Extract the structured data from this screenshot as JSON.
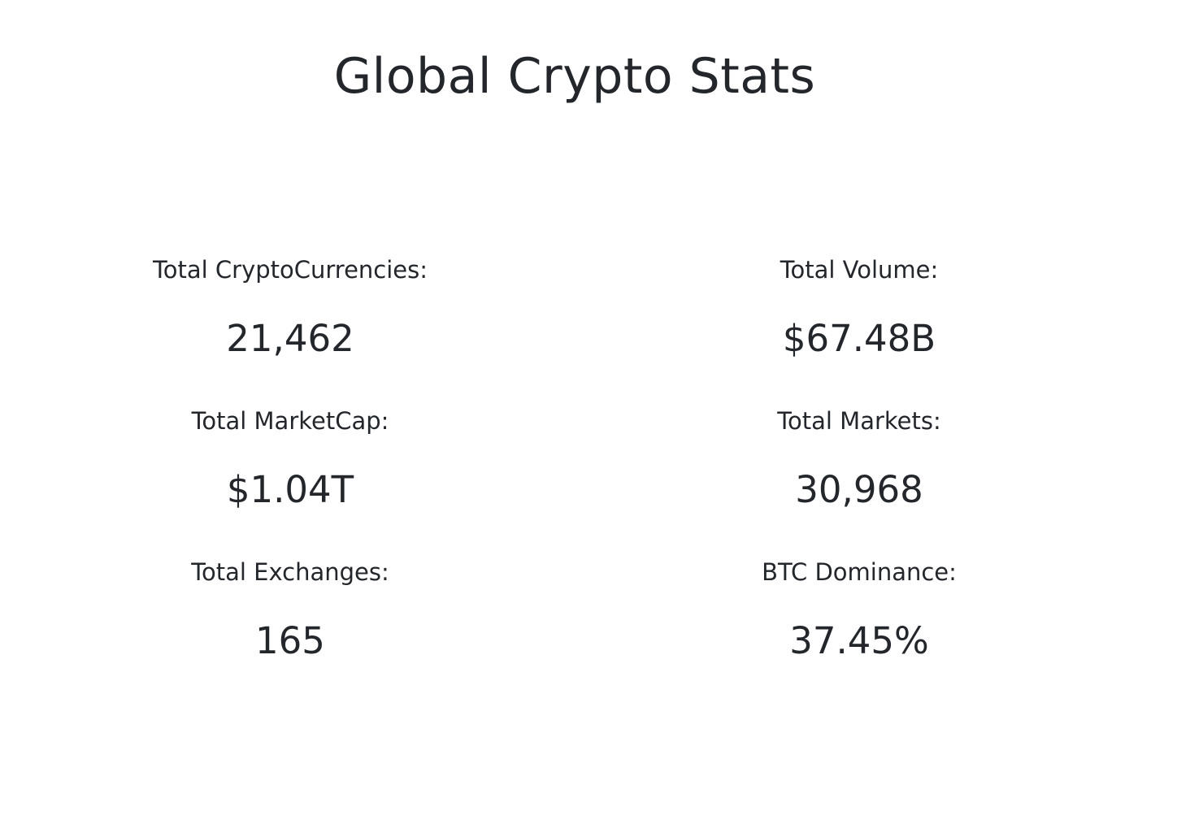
{
  "title": "Global Crypto Stats",
  "stats": {
    "left": [
      {
        "label": "Total CryptoCurrencies:",
        "value": "21,462"
      },
      {
        "label": "Total MarketCap:",
        "value": "$1.04T"
      },
      {
        "label": "Total Exchanges:",
        "value": "165"
      }
    ],
    "right": [
      {
        "label": "Total Volume:",
        "value": "$67.48B"
      },
      {
        "label": "Total Markets:",
        "value": "30,968"
      },
      {
        "label": "BTC Dominance:",
        "value": "37.45%"
      }
    ]
  },
  "colors": {
    "text": "#23262b",
    "background": "#ffffff"
  }
}
